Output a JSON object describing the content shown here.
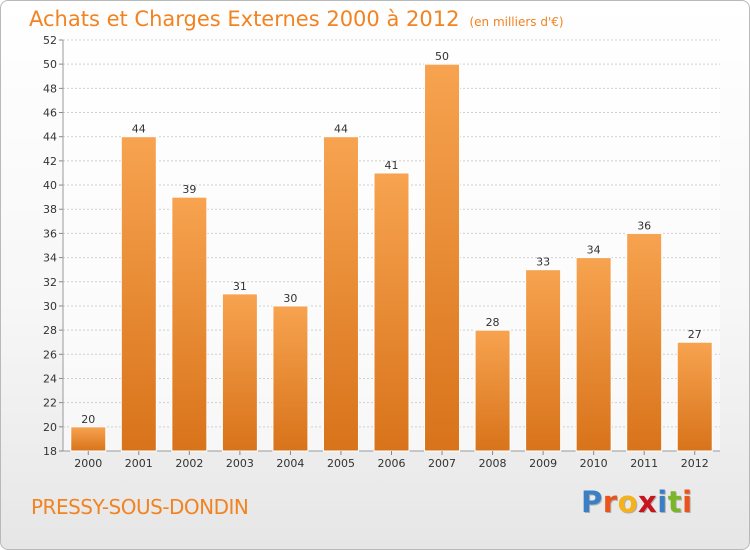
{
  "header": {
    "title": "Achats et Charges Externes 2000 à 2012",
    "unit": "(en milliers d'€)"
  },
  "footer": {
    "place": "PRESSY-SOUS-DONDIN",
    "logo_letters": [
      "P",
      "r",
      "o",
      "x",
      "i",
      "t",
      "i"
    ],
    "logo_colors": [
      "#3a7fc4",
      "#e8541c",
      "#f5b21b",
      "#c8141e",
      "#3a7fc4",
      "#7ab52a",
      "#e8541c"
    ]
  },
  "colors": {
    "bar_top": "#f7a350",
    "bar_bottom": "#d8731a",
    "accent": "#f28322",
    "grid": "#d0d0d0"
  },
  "chart_data": {
    "type": "bar",
    "categories": [
      "2000",
      "2001",
      "2002",
      "2003",
      "2004",
      "2005",
      "2006",
      "2007",
      "2008",
      "2009",
      "2010",
      "2011",
      "2012"
    ],
    "values": [
      20,
      44,
      39,
      31,
      30,
      44,
      41,
      50,
      28,
      33,
      34,
      36,
      27
    ],
    "ylim": [
      18,
      52
    ],
    "yticks": [
      18,
      20,
      22,
      24,
      26,
      28,
      30,
      32,
      34,
      36,
      38,
      40,
      42,
      44,
      46,
      48,
      50,
      52
    ],
    "grid": true
  }
}
